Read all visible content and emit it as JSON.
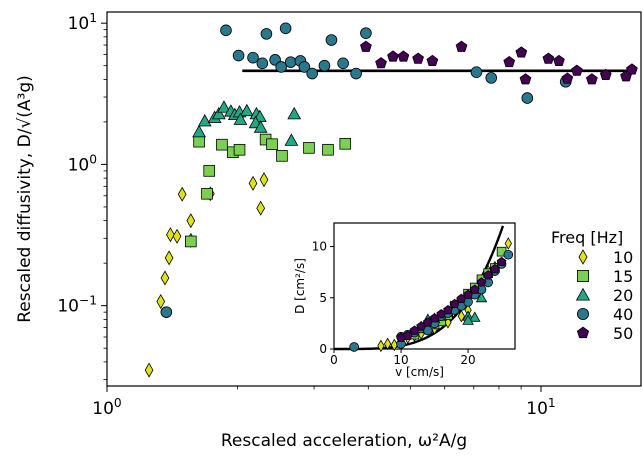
{
  "chart_data": [
    {
      "type": "scatter",
      "title": "",
      "xlabel": "Rescaled acceleration, ω²A/g",
      "ylabel": "Rescaled diffusivity, D/√(A³g)",
      "xscale": "log",
      "yscale": "log",
      "xlim": [
        1.0,
        17.0
      ],
      "ylim": [
        0.027,
        12.0
      ],
      "x_ticks": [
        {
          "value": 1,
          "base": "10",
          "exp": "0"
        },
        {
          "value": 10,
          "base": "10",
          "exp": "1"
        }
      ],
      "y_ticks": [
        {
          "value": 0.1,
          "base": "10",
          "exp": "−1"
        },
        {
          "value": 1,
          "base": "10",
          "exp": "0"
        },
        {
          "value": 10,
          "base": "10",
          "exp": "1"
        }
      ],
      "grid": false,
      "legend": {
        "title": "Freq [Hz]",
        "position": "right"
      },
      "fit_line": {
        "x": [
          2.05,
          16.5
        ],
        "y": 4.6
      },
      "series": [
        {
          "name": "10",
          "marker": "diamond",
          "color": "#dde318",
          "points": [
            [
              1.25,
              0.035
            ],
            [
              1.33,
              0.107
            ],
            [
              1.36,
              0.157
            ],
            [
              1.39,
              0.218
            ],
            [
              1.4,
              0.318
            ],
            [
              1.45,
              0.31
            ],
            [
              1.49,
              0.615
            ],
            [
              1.56,
              0.4
            ],
            [
              1.56,
              0.29
            ],
            [
              1.73,
              0.62
            ],
            [
              2.17,
              0.735
            ],
            [
              2.26,
              0.49
            ],
            [
              2.3,
              0.78
            ]
          ]
        },
        {
          "name": "15",
          "marker": "square",
          "color": "#7ad151",
          "points": [
            [
              1.56,
              0.285
            ],
            [
              1.63,
              1.45
            ],
            [
              1.7,
              0.62
            ],
            [
              1.72,
              0.9
            ],
            [
              1.84,
              1.38
            ],
            [
              1.95,
              1.22
            ],
            [
              2.02,
              1.27
            ],
            [
              2.32,
              1.5
            ],
            [
              2.4,
              1.39
            ],
            [
              2.53,
              1.15
            ],
            [
              2.92,
              1.31
            ],
            [
              3.23,
              1.27
            ],
            [
              3.54,
              1.4
            ]
          ]
        },
        {
          "name": "20",
          "marker": "triangle",
          "color": "#22a884",
          "points": [
            [
              1.63,
              1.7
            ],
            [
              1.68,
              2.03
            ],
            [
              1.77,
              2.15
            ],
            [
              1.81,
              2.28
            ],
            [
              1.86,
              2.54
            ],
            [
              1.93,
              2.38
            ],
            [
              1.97,
              2.25
            ],
            [
              2.02,
              2.35
            ],
            [
              2.1,
              2.4
            ],
            [
              2.21,
              2.28
            ],
            [
              2.25,
              2.18
            ],
            [
              2.2,
              1.97
            ],
            [
              2.26,
              1.83
            ],
            [
              2.03,
              2.08
            ],
            [
              2.7,
              2.28
            ],
            [
              2.66,
              1.48
            ]
          ]
        },
        {
          "name": "40",
          "marker": "circle",
          "color": "#2a788e",
          "points": [
            [
              1.37,
              0.09
            ],
            [
              1.88,
              8.9
            ],
            [
              2.01,
              5.9
            ],
            [
              2.17,
              5.7
            ],
            [
              2.28,
              5.2
            ],
            [
              2.33,
              8.4
            ],
            [
              2.44,
              5.5
            ],
            [
              2.52,
              4.9
            ],
            [
              2.58,
              9.2
            ],
            [
              2.65,
              5.3
            ],
            [
              2.79,
              5.4
            ],
            [
              2.85,
              4.9
            ],
            [
              2.97,
              4.4
            ],
            [
              3.17,
              5.0
            ],
            [
              3.29,
              7.6
            ],
            [
              3.5,
              5.2
            ],
            [
              3.75,
              4.4
            ],
            [
              3.95,
              8.5
            ],
            [
              7.1,
              4.5
            ],
            [
              7.68,
              4.1
            ],
            [
              9.3,
              2.95
            ],
            [
              11.4,
              3.85
            ]
          ]
        },
        {
          "name": "50",
          "marker": "pentagon",
          "color": "#440154",
          "points": [
            [
              3.95,
              6.8
            ],
            [
              4.28,
              5.2
            ],
            [
              4.56,
              5.8
            ],
            [
              4.82,
              5.8
            ],
            [
              5.21,
              5.6
            ],
            [
              5.62,
              5.4
            ],
            [
              6.56,
              6.8
            ],
            [
              8.45,
              5.3
            ],
            [
              9.01,
              6.2
            ],
            [
              9.21,
              4.0
            ],
            [
              10.4,
              5.6
            ],
            [
              11.0,
              5.4
            ],
            [
              11.5,
              4.05
            ],
            [
              12.1,
              4.6
            ],
            [
              13.1,
              4.0
            ],
            [
              14.1,
              4.3
            ],
            [
              15.7,
              4.2
            ],
            [
              16.2,
              4.7
            ]
          ]
        }
      ]
    },
    {
      "type": "scatter",
      "title": "",
      "xlabel": "v [cm/s]",
      "ylabel": "D [cm²/s]",
      "xlim": [
        0,
        27
      ],
      "ylim": [
        0,
        12.3
      ],
      "x_ticks": [
        0,
        10,
        20
      ],
      "y_ticks": [
        0,
        5,
        10
      ],
      "grid": false,
      "fit_curve": "power",
      "series": [
        {
          "name": "10",
          "marker": "diamond",
          "color": "#dde318",
          "points": [
            [
              7,
              0.3
            ],
            [
              8,
              0.5
            ],
            [
              9,
              0.4
            ],
            [
              10,
              1.0
            ],
            [
              11,
              1.1
            ],
            [
              12,
              1.3
            ],
            [
              13,
              1.5
            ],
            [
              15,
              2.0
            ],
            [
              17,
              2.6
            ],
            [
              19,
              3.2
            ],
            [
              20,
              3.8
            ],
            [
              23,
              7.6
            ],
            [
              24,
              8.0
            ],
            [
              26,
              10.3
            ]
          ]
        },
        {
          "name": "15",
          "marker": "square",
          "color": "#7ad151",
          "points": [
            [
              12,
              1.4
            ],
            [
              14,
              2.0
            ],
            [
              15,
              2.4
            ],
            [
              16,
              2.7
            ],
            [
              17,
              3.3
            ],
            [
              18,
              4.2
            ],
            [
              19,
              4.5
            ],
            [
              20,
              5.4
            ],
            [
              21,
              6.0
            ],
            [
              22,
              6.8
            ],
            [
              23,
              7.4
            ],
            [
              24,
              7.9
            ],
            [
              25,
              9.5
            ]
          ]
        },
        {
          "name": "20",
          "marker": "triangle",
          "color": "#22a884",
          "points": [
            [
              13,
              2.2
            ],
            [
              14,
              2.9
            ],
            [
              15,
              3.0
            ],
            [
              16,
              3.2
            ],
            [
              17,
              3.6
            ],
            [
              18,
              3.9
            ],
            [
              19,
              4.6
            ],
            [
              20,
              3.2
            ],
            [
              21,
              3.1
            ],
            [
              20,
              2.8
            ],
            [
              22,
              5.0
            ],
            [
              18,
              4.1
            ]
          ]
        },
        {
          "name": "40",
          "marker": "circle",
          "color": "#2a788e",
          "points": [
            [
              3,
              0.2
            ],
            [
              10,
              1.2
            ],
            [
              11,
              1.4
            ],
            [
              12,
              1.6
            ],
            [
              13,
              2.0
            ],
            [
              14,
              1.8
            ],
            [
              15,
              2.5
            ],
            [
              16,
              3.2
            ],
            [
              17,
              3.5
            ],
            [
              18,
              3.8
            ],
            [
              19,
              4.2
            ],
            [
              20,
              4.6
            ],
            [
              21,
              5.3
            ],
            [
              22,
              5.8
            ],
            [
              23,
              6.5
            ],
            [
              24,
              7.6
            ],
            [
              25,
              8.3
            ],
            [
              26,
              9.2
            ],
            [
              10,
              0.5
            ]
          ]
        },
        {
          "name": "50",
          "marker": "pentagon",
          "color": "#440154",
          "points": [
            [
              10,
              1.1
            ],
            [
              11,
              1.3
            ],
            [
              12,
              1.8
            ],
            [
              13,
              2.2
            ],
            [
              14,
              2.6
            ],
            [
              15,
              3.0
            ],
            [
              16,
              3.4
            ],
            [
              17,
              3.8
            ],
            [
              18,
              4.4
            ],
            [
              19,
              4.9
            ],
            [
              20,
              5.3
            ],
            [
              21,
              5.8
            ],
            [
              22,
              6.5
            ],
            [
              23,
              7.2
            ],
            [
              24,
              7.8
            ],
            [
              25,
              8.5
            ]
          ]
        }
      ]
    }
  ]
}
